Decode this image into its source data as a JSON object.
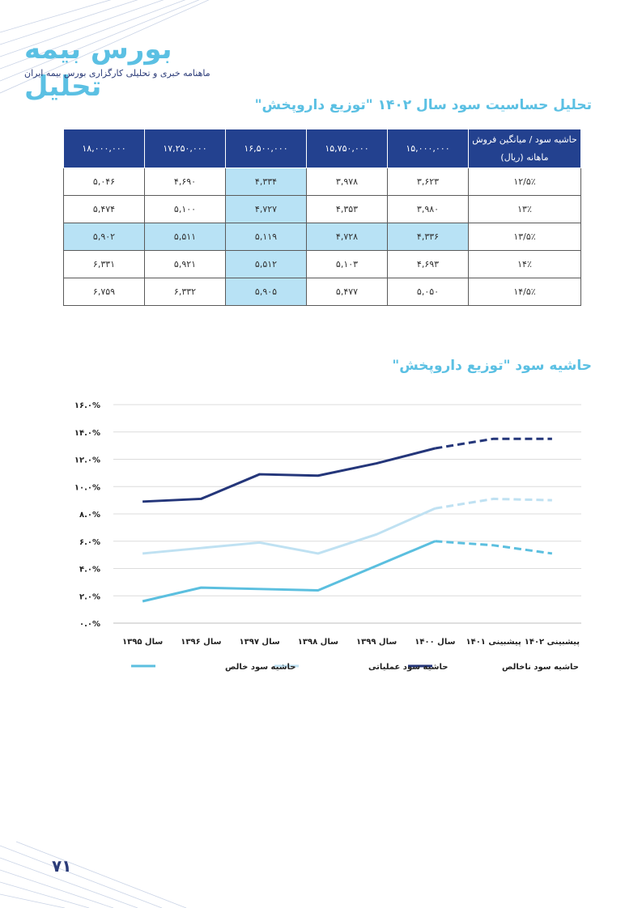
{
  "header": {
    "brand": "بورس بیمه تحلیل",
    "subtitle": "ماهنامه خبری و تحلیلی کارگزاری بورس بیمه ایران"
  },
  "sensitivity": {
    "title": "تحلیل حساسیت سود سال ۱۴۰۲ \"توزیع داروپخش\"",
    "corner_header": "حاشیه سود / میانگین فروش ماهانه (ریال)",
    "columns": [
      "۱۵,۰۰۰,۰۰۰",
      "۱۵,۷۵۰,۰۰۰",
      "۱۶,۵۰۰,۰۰۰",
      "۱۷,۲۵۰,۰۰۰",
      "۱۸,۰۰۰,۰۰۰"
    ],
    "rows": [
      {
        "margin": "۱۲/۵٪",
        "values": [
          "۳,۶۲۳",
          "۳,۹۷۸",
          "۴,۳۳۴",
          "۴,۶۹۰",
          "۵,۰۴۶"
        ]
      },
      {
        "margin": "۱۳٪",
        "values": [
          "۳,۹۸۰",
          "۴,۳۵۳",
          "۴,۷۲۷",
          "۵,۱۰۰",
          "۵,۴۷۴"
        ]
      },
      {
        "margin": "۱۳/۵٪",
        "values": [
          "۴,۳۳۶",
          "۴,۷۲۸",
          "۵,۱۱۹",
          "۵,۵۱۱",
          "۵,۹۰۲"
        ]
      },
      {
        "margin": "۱۴٪",
        "values": [
          "۴,۶۹۳",
          "۵,۱۰۳",
          "۵,۵۱۲",
          "۵,۹۲۱",
          "۶,۳۳۱"
        ]
      },
      {
        "margin": "۱۴/۵٪",
        "values": [
          "۵,۰۵۰",
          "۵,۴۷۷",
          "۵,۹۰۵",
          "۶,۳۳۲",
          "۶,۷۵۹"
        ]
      }
    ]
  },
  "chart_title": "حاشیه سود \"توزیع داروپخش\"",
  "chart_data": {
    "type": "line",
    "title": "",
    "categories": [
      "سال ۱۳۹۵",
      "سال ۱۳۹۶",
      "سال ۱۳۹۷",
      "سال ۱۳۹۸",
      "سال ۱۳۹۹",
      "سال ۱۴۰۰",
      "پیشبینی ۱۴۰۱",
      "پیشبینی ۱۴۰۲"
    ],
    "y_ticks": [
      "۰.۰%",
      "۲.۰%",
      "۴.۰%",
      "۶.۰%",
      "۸.۰%",
      "۱۰.۰%",
      "۱۲.۰%",
      "۱۴.۰%",
      "۱۶.۰%"
    ],
    "ylim": [
      0,
      16
    ],
    "grid": true,
    "forecast_from_index": 5,
    "legend_position": "bottom",
    "series": [
      {
        "name": "حاشیه سود ناخالص",
        "color": "#24367a",
        "values": [
          8.9,
          9.1,
          10.9,
          10.8,
          11.7,
          12.8,
          13.5,
          13.5
        ]
      },
      {
        "name": "حاشیه سود عملیاتی",
        "color": "#bfe1f2",
        "values": [
          5.1,
          5.5,
          5.9,
          5.1,
          6.5,
          8.4,
          9.1,
          9.0
        ]
      },
      {
        "name": "حاشیه سود خالص",
        "color": "#5bbfdf",
        "values": [
          1.6,
          2.6,
          2.5,
          2.4,
          4.2,
          6.0,
          5.7,
          5.1
        ]
      }
    ]
  },
  "page_number": "۷۱",
  "colors": {
    "accent": "#5bc0e3",
    "navy": "#23418f",
    "highlight": "#b8e2f5"
  }
}
